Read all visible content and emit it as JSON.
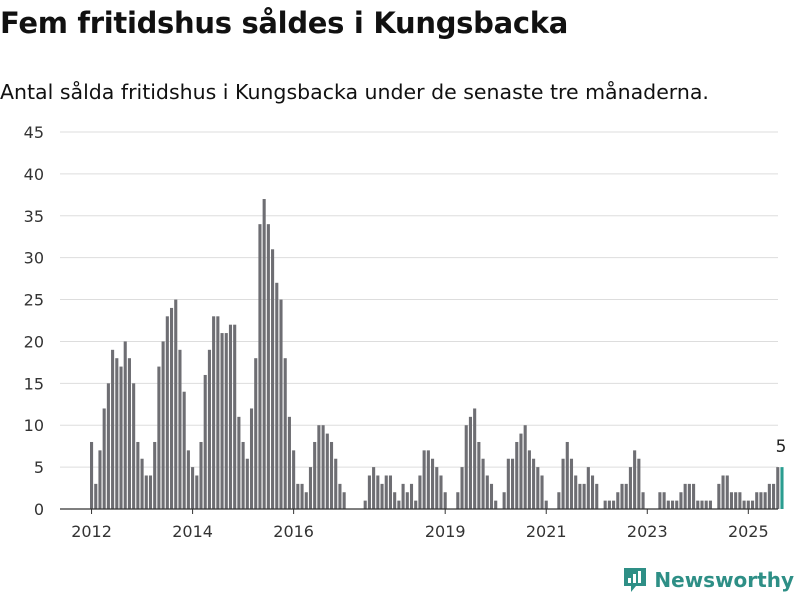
{
  "title": "Fem fritidshus såldes i Kungsbacka",
  "subtitle": "Antal sålda fritidshus i Kungsbacka under de senaste tre månaderna.",
  "brand": {
    "name": "Newsworthy",
    "icon": "chart-logo-icon"
  },
  "colors": {
    "bar": "#6e6e73",
    "highlight": "#2a9d90",
    "grid": "#dddddd",
    "axis": "#333333",
    "brand": "#2e8f86"
  },
  "chart_data": {
    "type": "bar",
    "title": "",
    "xlabel": "",
    "ylabel": "",
    "ylim": [
      0,
      45
    ],
    "yticks": [
      0,
      5,
      10,
      15,
      20,
      25,
      30,
      35,
      40,
      45
    ],
    "xticks": [
      "2012",
      "2014",
      "2016",
      "2019",
      "2021",
      "2023",
      "2025"
    ],
    "grid": true,
    "legend": "none",
    "highlight_label": "5",
    "start_month": "2012-01",
    "series": [
      {
        "values": [
          8,
          3,
          7,
          12,
          15,
          19,
          18,
          17,
          20,
          18,
          15,
          8,
          6,
          4,
          4,
          8,
          17,
          20,
          23,
          24,
          25,
          19,
          14,
          7,
          5,
          4,
          8,
          16,
          19,
          23,
          23,
          21,
          21,
          22,
          22,
          11,
          8,
          6,
          12,
          18,
          34,
          37,
          34,
          31,
          27,
          25,
          18,
          11,
          7,
          3,
          3,
          2,
          5,
          8,
          10,
          10,
          9,
          8,
          6,
          3,
          2,
          0,
          0,
          0,
          0,
          1,
          4,
          5,
          4,
          3,
          4,
          4,
          2,
          1,
          3,
          2,
          3,
          1,
          4,
          7,
          7,
          6,
          5,
          4,
          2,
          0,
          0,
          2,
          5,
          10,
          11,
          12,
          8,
          6,
          4,
          3,
          1,
          0,
          2,
          6,
          6,
          8,
          9,
          10,
          7,
          6,
          5,
          4,
          1,
          0,
          0,
          2,
          6,
          8,
          6,
          4,
          3,
          3,
          5,
          4,
          3,
          0,
          1,
          1,
          1,
          2,
          3,
          3,
          5,
          7,
          6,
          2,
          0,
          0,
          0,
          2,
          2,
          1,
          1,
          1,
          2,
          3,
          3,
          3,
          1,
          1,
          1,
          1,
          0,
          3,
          4,
          4,
          2,
          2,
          2,
          1,
          1,
          1,
          2,
          2,
          2,
          3,
          3,
          5,
          5
        ]
      }
    ]
  }
}
